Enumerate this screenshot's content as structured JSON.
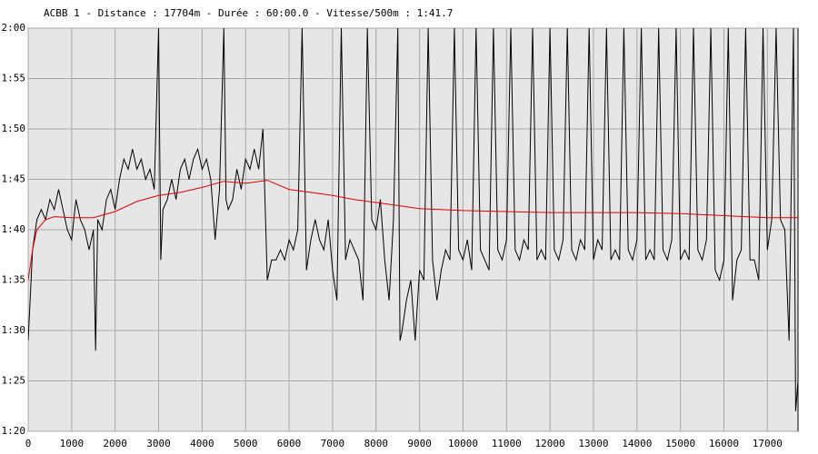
{
  "chart_data": {
    "type": "line",
    "title": "ACBB 1 - Distance : 17704m - Durée : 60:00.0 - Vitesse/500m : 1:41.7",
    "xlim": [
      0,
      17704
    ],
    "xticks": [
      0,
      1000,
      2000,
      3000,
      4000,
      5000,
      6000,
      7000,
      8000,
      9000,
      10000,
      11000,
      12000,
      13000,
      14000,
      15000,
      16000,
      17000
    ],
    "ylim": [
      80,
      120
    ],
    "yticks": [
      {
        "value": 80,
        "label": "1:20"
      },
      {
        "value": 85,
        "label": "1:25"
      },
      {
        "value": 90,
        "label": "1:30"
      },
      {
        "value": 95,
        "label": "1:35"
      },
      {
        "value": 100,
        "label": "1:40"
      },
      {
        "value": 105,
        "label": "1:45"
      },
      {
        "value": 110,
        "label": "1:50"
      },
      {
        "value": 115,
        "label": "1:55"
      },
      {
        "value": 120,
        "label": "2:00"
      }
    ],
    "grid": true,
    "series": [
      {
        "color": "#000000",
        "x": [
          0,
          100,
          200,
          300,
          400,
          500,
          600,
          700,
          800,
          900,
          1000,
          1100,
          1200,
          1300,
          1400,
          1500,
          1550,
          1600,
          1700,
          1800,
          1900,
          2000,
          2100,
          2200,
          2300,
          2400,
          2500,
          2600,
          2700,
          2800,
          2900,
          3000,
          3050,
          3100,
          3200,
          3300,
          3400,
          3500,
          3600,
          3700,
          3800,
          3900,
          4000,
          4100,
          4200,
          4300,
          4400,
          4500,
          4550,
          4600,
          4700,
          4800,
          4900,
          5000,
          5100,
          5200,
          5300,
          5400,
          5500,
          5600,
          5700,
          5800,
          5900,
          6000,
          6100,
          6200,
          6300,
          6400,
          6500,
          6600,
          6700,
          6800,
          6900,
          7000,
          7100,
          7200,
          7300,
          7400,
          7500,
          7600,
          7700,
          7800,
          7900,
          8000,
          8100,
          8200,
          8300,
          8400,
          8500,
          8550,
          8600,
          8700,
          8800,
          8900,
          9000,
          9100,
          9200,
          9300,
          9400,
          9500,
          9600,
          9700,
          9800,
          9900,
          10000,
          10100,
          10200,
          10300,
          10400,
          10500,
          10600,
          10700,
          10800,
          10900,
          11000,
          11100,
          11200,
          11300,
          11400,
          11500,
          11600,
          11700,
          11800,
          11900,
          12000,
          12100,
          12200,
          12300,
          12400,
          12500,
          12600,
          12700,
          12800,
          12900,
          13000,
          13100,
          13200,
          13300,
          13400,
          13500,
          13600,
          13700,
          13800,
          13900,
          14000,
          14100,
          14200,
          14300,
          14400,
          14500,
          14600,
          14700,
          14800,
          14900,
          15000,
          15100,
          15200,
          15300,
          15400,
          15500,
          15600,
          15700,
          15800,
          15900,
          16000,
          16100,
          16200,
          16300,
          16400,
          16500,
          16600,
          16700,
          16800,
          16900,
          17000,
          17100,
          17200,
          17300,
          17400,
          17500,
          17600,
          17650,
          17704
        ],
        "values": [
          89,
          98,
          101,
          102,
          101,
          103,
          102,
          104,
          102,
          100,
          99,
          103,
          101,
          100,
          98,
          100,
          88,
          101,
          100,
          103,
          104,
          102,
          105,
          107,
          106,
          108,
          106,
          107,
          105,
          106,
          104,
          120,
          97,
          102,
          103,
          105,
          103,
          106,
          107,
          105,
          107,
          108,
          106,
          107,
          105,
          99,
          104,
          120,
          103,
          102,
          103,
          106,
          104,
          107,
          106,
          108,
          106,
          110,
          95,
          97,
          97,
          98,
          97,
          99,
          98,
          100,
          120,
          96,
          99,
          101,
          99,
          98,
          101,
          96,
          93,
          120,
          97,
          99,
          98,
          97,
          93,
          120,
          101,
          100,
          103,
          97,
          93,
          101,
          120,
          89,
          90,
          93,
          95,
          89,
          96,
          95,
          120,
          97,
          93,
          96,
          98,
          97,
          120,
          98,
          97,
          99,
          96,
          120,
          98,
          97,
          96,
          120,
          98,
          97,
          99,
          120,
          98,
          97,
          99,
          98,
          120,
          97,
          98,
          97,
          120,
          98,
          97,
          99,
          120,
          98,
          97,
          99,
          98,
          120,
          97,
          99,
          98,
          120,
          97,
          98,
          97,
          120,
          98,
          97,
          99,
          120,
          97,
          98,
          97,
          120,
          98,
          97,
          99,
          120,
          97,
          98,
          97,
          120,
          98,
          97,
          99,
          120,
          96,
          95,
          97,
          120,
          93,
          97,
          98,
          120,
          97,
          97,
          95,
          120,
          98,
          101,
          120,
          101,
          100,
          89,
          120,
          82,
          85
        ]
      },
      {
        "color": "#e00000",
        "x": [
          0,
          100,
          200,
          400,
          600,
          1000,
          1500,
          2000,
          2500,
          3000,
          3500,
          4000,
          4500,
          5000,
          5500,
          6000,
          6500,
          7000,
          7500,
          8000,
          8500,
          9000,
          10000,
          11000,
          12000,
          13000,
          14000,
          15000,
          16000,
          17000,
          17704
        ],
        "values": [
          95,
          98,
          100,
          101,
          101.3,
          101.2,
          101.2,
          101.8,
          102.8,
          103.4,
          103.7,
          104.2,
          104.8,
          104.6,
          104.9,
          104,
          103.7,
          103.4,
          103,
          102.7,
          102.4,
          102.1,
          101.9,
          101.8,
          101.7,
          101.7,
          101.7,
          101.6,
          101.4,
          101.2,
          101.2
        ]
      }
    ]
  }
}
